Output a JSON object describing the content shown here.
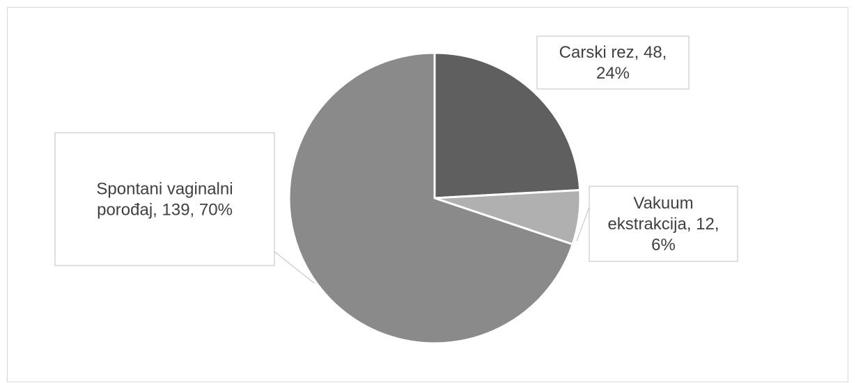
{
  "chart_data": {
    "type": "pie",
    "title": "",
    "slices": [
      {
        "category": "Carski rez",
        "value": 48,
        "percent": "24%",
        "color": "#5f5f5f",
        "label_lines": [
          "Carski rez, 48,",
          "24%"
        ]
      },
      {
        "category": "Vakuum ekstrakcija",
        "value": 12,
        "percent": "6%",
        "color": "#b0b0b0",
        "label_lines": [
          "Vakuum",
          "ekstrakcija, 12,",
          "6%"
        ]
      },
      {
        "category": "Spontani vaginalni porođaj",
        "value": 139,
        "percent": "70%",
        "color": "#8a8a8a",
        "label_lines": [
          "Spontani vaginalni",
          "porođaj, 139, 70%"
        ]
      }
    ],
    "legend": "none",
    "data_labels": "callouts"
  }
}
